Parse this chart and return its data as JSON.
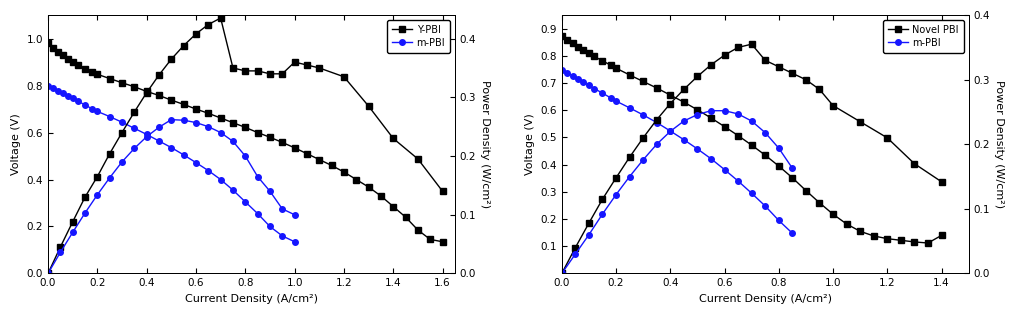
{
  "plot1": {
    "xlabel": "Current Density (A/cm²)",
    "ylabel_left": "Voltage (V)",
    "ylabel_right": "Power Density (W/cm²)",
    "ylim_left": [
      0.0,
      1.1
    ],
    "ylim_right": [
      0.0,
      0.44
    ],
    "xlim": [
      0.0,
      1.65
    ],
    "yticks_left": [
      0.0,
      0.2,
      0.4,
      0.6,
      0.8,
      1.0
    ],
    "yticks_right": [
      0.0,
      0.1,
      0.2,
      0.3,
      0.4
    ],
    "xticks": [
      0.0,
      0.2,
      0.4,
      0.6,
      0.8,
      1.0,
      1.2,
      1.4,
      1.6
    ],
    "legend1_label": "Y-PBI",
    "legend2_label": "m-PBI",
    "iv_black_x": [
      0.0,
      0.02,
      0.04,
      0.06,
      0.08,
      0.1,
      0.12,
      0.15,
      0.18,
      0.2,
      0.25,
      0.3,
      0.35,
      0.4,
      0.45,
      0.5,
      0.55,
      0.6,
      0.65,
      0.7,
      0.75,
      0.8,
      0.85,
      0.9,
      0.95,
      1.0,
      1.05,
      1.1,
      1.15,
      1.2,
      1.25,
      1.3,
      1.35,
      1.4,
      1.45,
      1.5,
      1.55,
      1.6
    ],
    "iv_black_y": [
      0.98,
      0.96,
      0.945,
      0.93,
      0.915,
      0.9,
      0.888,
      0.87,
      0.857,
      0.848,
      0.83,
      0.812,
      0.795,
      0.775,
      0.758,
      0.738,
      0.72,
      0.7,
      0.682,
      0.662,
      0.642,
      0.622,
      0.6,
      0.58,
      0.558,
      0.535,
      0.51,
      0.485,
      0.46,
      0.432,
      0.4,
      0.368,
      0.33,
      0.285,
      0.24,
      0.185,
      0.145,
      0.135
    ],
    "iv_blue_x": [
      0.0,
      0.02,
      0.04,
      0.06,
      0.08,
      0.1,
      0.12,
      0.15,
      0.18,
      0.2,
      0.25,
      0.3,
      0.35,
      0.4,
      0.45,
      0.5,
      0.55,
      0.6,
      0.65,
      0.7,
      0.75,
      0.8,
      0.85,
      0.9,
      0.95,
      1.0
    ],
    "iv_blue_y": [
      0.8,
      0.79,
      0.778,
      0.768,
      0.757,
      0.745,
      0.734,
      0.718,
      0.7,
      0.69,
      0.668,
      0.644,
      0.618,
      0.592,
      0.564,
      0.536,
      0.505,
      0.472,
      0.438,
      0.4,
      0.355,
      0.305,
      0.255,
      0.2,
      0.16,
      0.135
    ],
    "pd_black_x": [
      0.0,
      0.05,
      0.1,
      0.15,
      0.2,
      0.25,
      0.3,
      0.35,
      0.4,
      0.45,
      0.5,
      0.55,
      0.6,
      0.65,
      0.7,
      0.75,
      0.8,
      0.85,
      0.9,
      0.95,
      1.0,
      1.05,
      1.1,
      1.2,
      1.3,
      1.4,
      1.5,
      1.6
    ],
    "pd_black_y": [
      0.0,
      0.045,
      0.088,
      0.13,
      0.165,
      0.204,
      0.24,
      0.275,
      0.308,
      0.338,
      0.365,
      0.388,
      0.408,
      0.424,
      0.435,
      0.35,
      0.345,
      0.345,
      0.34,
      0.34,
      0.36,
      0.355,
      0.35,
      0.335,
      0.285,
      0.23,
      0.195,
      0.14
    ],
    "pd_blue_x": [
      0.0,
      0.05,
      0.1,
      0.15,
      0.2,
      0.25,
      0.3,
      0.35,
      0.4,
      0.45,
      0.5,
      0.55,
      0.6,
      0.65,
      0.7,
      0.75,
      0.8,
      0.85,
      0.9,
      0.95,
      1.0
    ],
    "pd_blue_y": [
      0.0,
      0.036,
      0.07,
      0.103,
      0.134,
      0.163,
      0.19,
      0.213,
      0.233,
      0.249,
      0.262,
      0.261,
      0.257,
      0.25,
      0.24,
      0.225,
      0.2,
      0.165,
      0.14,
      0.11,
      0.1
    ]
  },
  "plot2": {
    "xlabel": "Current Density (A/cm²)",
    "ylabel_left": "Voltage (V)",
    "ylabel_right": "Power Density (W/cm²)",
    "ylim_left": [
      0.0,
      0.95
    ],
    "ylim_right": [
      0.0,
      0.4
    ],
    "xlim": [
      0.0,
      1.5
    ],
    "yticks_left": [
      0.1,
      0.2,
      0.3,
      0.4,
      0.5,
      0.6,
      0.7,
      0.8,
      0.9
    ],
    "yticks_right": [
      0.0,
      0.1,
      0.2,
      0.3,
      0.4
    ],
    "xticks": [
      0.0,
      0.2,
      0.4,
      0.6,
      0.8,
      1.0,
      1.2,
      1.4
    ],
    "legend1_label": "Novel PBI",
    "legend2_label": "m-PBI",
    "iv_black_x": [
      0.0,
      0.02,
      0.04,
      0.06,
      0.08,
      0.1,
      0.12,
      0.15,
      0.18,
      0.2,
      0.25,
      0.3,
      0.35,
      0.4,
      0.45,
      0.5,
      0.55,
      0.6,
      0.65,
      0.7,
      0.75,
      0.8,
      0.85,
      0.9,
      0.95,
      1.0,
      1.05,
      1.1,
      1.15,
      1.2,
      1.25,
      1.3,
      1.35,
      1.4
    ],
    "iv_black_y": [
      0.875,
      0.86,
      0.847,
      0.834,
      0.822,
      0.81,
      0.798,
      0.782,
      0.766,
      0.755,
      0.73,
      0.706,
      0.682,
      0.656,
      0.63,
      0.602,
      0.572,
      0.54,
      0.507,
      0.472,
      0.435,
      0.395,
      0.352,
      0.305,
      0.26,
      0.218,
      0.182,
      0.155,
      0.138,
      0.128,
      0.122,
      0.116,
      0.112,
      0.14
    ],
    "iv_blue_x": [
      0.0,
      0.02,
      0.04,
      0.06,
      0.08,
      0.1,
      0.12,
      0.15,
      0.18,
      0.2,
      0.25,
      0.3,
      0.35,
      0.4,
      0.45,
      0.5,
      0.55,
      0.6,
      0.65,
      0.7,
      0.75,
      0.8,
      0.85
    ],
    "iv_blue_y": [
      0.75,
      0.738,
      0.726,
      0.714,
      0.703,
      0.692,
      0.68,
      0.663,
      0.646,
      0.634,
      0.609,
      0.583,
      0.555,
      0.524,
      0.492,
      0.458,
      0.422,
      0.382,
      0.34,
      0.295,
      0.248,
      0.195,
      0.148
    ],
    "pd_black_x": [
      0.0,
      0.05,
      0.1,
      0.15,
      0.2,
      0.25,
      0.3,
      0.35,
      0.4,
      0.45,
      0.5,
      0.55,
      0.6,
      0.65,
      0.7,
      0.75,
      0.8,
      0.85,
      0.9,
      0.95,
      1.0,
      1.1,
      1.2,
      1.3,
      1.4
    ],
    "pd_black_y": [
      0.0,
      0.04,
      0.078,
      0.115,
      0.148,
      0.18,
      0.21,
      0.238,
      0.263,
      0.285,
      0.305,
      0.323,
      0.338,
      0.35,
      0.355,
      0.33,
      0.32,
      0.31,
      0.3,
      0.285,
      0.26,
      0.235,
      0.21,
      0.17,
      0.142
    ],
    "pd_blue_x": [
      0.0,
      0.05,
      0.1,
      0.15,
      0.2,
      0.25,
      0.3,
      0.35,
      0.4,
      0.45,
      0.5,
      0.55,
      0.6,
      0.65,
      0.7,
      0.75,
      0.8,
      0.85
    ],
    "pd_blue_y": [
      0.0,
      0.03,
      0.06,
      0.092,
      0.122,
      0.15,
      0.176,
      0.2,
      0.22,
      0.236,
      0.246,
      0.252,
      0.252,
      0.247,
      0.236,
      0.218,
      0.194,
      0.163
    ]
  },
  "line_color_black": "#000000",
  "line_color_blue": "#1515ff",
  "marker_black": "s",
  "marker_blue": "o",
  "markersize": 4,
  "linewidth": 1.0,
  "fontsize_label": 8,
  "fontsize_tick": 7.5,
  "fontsize_legend": 7
}
